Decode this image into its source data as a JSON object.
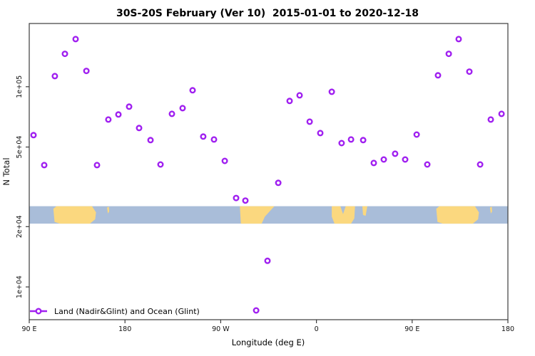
{
  "colors": {
    "marker": "#A020F0",
    "ocean": "#A9BDD9",
    "land": "#FBD87F",
    "frame": "#3c3c3c",
    "text": "#111111"
  },
  "chart_data": {
    "type": "scatter",
    "title": "30S-20S February (Ver 10)  2015-01-01 to 2020-12-18",
    "xlabel": "Longitude (deg E)",
    "ylabel": "N Total",
    "grid": false,
    "legend": {
      "label": "Land (Nadir&Glint) and Ocean (Glint)",
      "position": "bottom-left"
    },
    "x_axis": {
      "range": [
        90,
        540
      ],
      "ticks": [
        {
          "lon": 90,
          "label": "90 E"
        },
        {
          "lon": 180,
          "label": "180"
        },
        {
          "lon": 270,
          "label": "90 W"
        },
        {
          "lon": 360,
          "label": "0"
        },
        {
          "lon": 450,
          "label": "90 E"
        },
        {
          "lon": 540,
          "label": "180"
        }
      ]
    },
    "y_axis": {
      "scale": "log",
      "range": [
        6860,
        207000
      ],
      "ticks": [
        {
          "value": 100000,
          "label": "1e+05"
        },
        {
          "value": 50000,
          "label": "5e+04"
        },
        {
          "value": 20000,
          "label": "2e+04"
        },
        {
          "value": 10000,
          "label": "1e+04"
        }
      ]
    },
    "points": [
      [
        133.6,
        173000
      ],
      [
        123.5,
        146000
      ],
      [
        114.1,
        113000
      ],
      [
        143.7,
        120000
      ],
      [
        243.6,
        96000
      ],
      [
        183.9,
        79500
      ],
      [
        234.2,
        78200
      ],
      [
        224.1,
        73200
      ],
      [
        173.8,
        72700
      ],
      [
        164.4,
        68600
      ],
      [
        193.3,
        62200
      ],
      [
        204.0,
        54100
      ],
      [
        94.0,
        57300
      ],
      [
        104.1,
        40600
      ],
      [
        153.7,
        40600
      ],
      [
        213.4,
        40900
      ],
      [
        334.8,
        84900
      ],
      [
        344.2,
        90600
      ],
      [
        374.4,
        94400
      ],
      [
        353.6,
        66900
      ],
      [
        363.6,
        58700
      ],
      [
        383.7,
        52300
      ],
      [
        392.5,
        54500
      ],
      [
        253.6,
        56400
      ],
      [
        263.7,
        54500
      ],
      [
        273.8,
        42600
      ],
      [
        324.1,
        33100
      ],
      [
        493.7,
        173000
      ],
      [
        484.4,
        146000
      ],
      [
        503.8,
        119000
      ],
      [
        474.3,
        114000
      ],
      [
        534.0,
        73200
      ],
      [
        523.9,
        68600
      ],
      [
        454.2,
        57700
      ],
      [
        403.9,
        54100
      ],
      [
        434.0,
        46300
      ],
      [
        423.3,
        43300
      ],
      [
        443.4,
        43300
      ],
      [
        413.9,
        41600
      ],
      [
        464.2,
        40900
      ],
      [
        513.9,
        40900
      ],
      [
        284.5,
        27800
      ],
      [
        293.2,
        27000
      ],
      [
        314.0,
        13500
      ],
      [
        303.3,
        7630
      ]
    ],
    "map_band": {
      "description": "coastline strip for latitude band 30S-20S",
      "y_top_value": 25300,
      "y_bottom_value": 20700,
      "land_shapes": [
        {
          "name": "australia",
          "shape": [
            [
              112.7,
              0.15
            ],
            [
              115.5,
              0
            ],
            [
              149,
              0
            ],
            [
              152.8,
              0.35
            ],
            [
              152,
              0.75
            ],
            [
              147,
              1
            ],
            [
              119,
              1
            ],
            [
              113.8,
              0.9
            ]
          ]
        },
        {
          "name": "new-caledonia",
          "shape": [
            [
              163.2,
              0.08
            ],
            [
              164.8,
              0.02
            ],
            [
              165.2,
              0.3
            ],
            [
              163.9,
              0.42
            ]
          ]
        },
        {
          "name": "south-america",
          "shape": [
            [
              288.0,
              0
            ],
            [
              320.5,
              0
            ],
            [
              311.5,
              0.6
            ],
            [
              308.5,
              1
            ],
            [
              289,
              1
            ]
          ]
        },
        {
          "name": "africa",
          "shape": [
            [
              374.4,
              0
            ],
            [
              382.5,
              0
            ],
            [
              385,
              0.45
            ],
            [
              387.5,
              0
            ],
            [
              396.3,
              0
            ],
            [
              395.6,
              0.7
            ],
            [
              392.5,
              1
            ],
            [
              377,
              1
            ],
            [
              374.4,
              0.6
            ]
          ]
        },
        {
          "name": "madagascar",
          "shape": [
            [
              403.2,
              0
            ],
            [
              407.8,
              0
            ],
            [
              406.3,
              0.55
            ],
            [
              403.8,
              0.5
            ]
          ]
        },
        {
          "name": "australia-2",
          "shape": [
            [
              472.7,
              0.15
            ],
            [
              475.5,
              0
            ],
            [
              509,
              0
            ],
            [
              512.8,
              0.35
            ],
            [
              512,
              0.75
            ],
            [
              507,
              1
            ],
            [
              479,
              1
            ],
            [
              473.8,
              0.9
            ]
          ]
        },
        {
          "name": "new-caledonia-2",
          "shape": [
            [
              523.2,
              0.08
            ],
            [
              524.8,
              0.02
            ],
            [
              525.2,
              0.3
            ],
            [
              523.9,
              0.42
            ]
          ]
        }
      ]
    }
  }
}
